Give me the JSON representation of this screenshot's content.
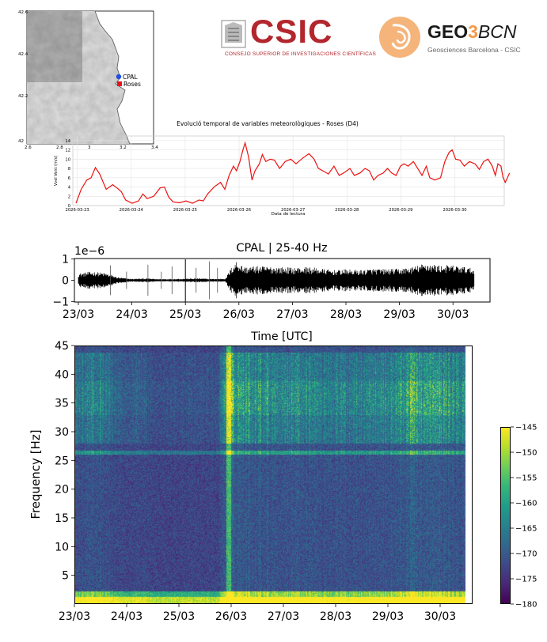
{
  "logos": {
    "csic_word": "CSIC",
    "csic_sub": "Consejo Superior de Investigaciones Científicas",
    "geo_bold": "GEO",
    "geo_three": "3",
    "geo_rest": "BCN",
    "geo_sub": "Geosciences Barcelona - CSIC"
  },
  "map": {
    "stations": [
      {
        "name": "CPAL",
        "marker": "circle",
        "color": "#1f4fe0"
      },
      {
        "name": "Roses",
        "marker": "square",
        "color": "#e8141c"
      }
    ],
    "lat_ticks": [
      "42.6",
      "42.4",
      "42.2",
      "42"
    ],
    "lon_ticks": [
      "2.6",
      "2.8",
      "3",
      "3.2",
      "3.4"
    ]
  },
  "colors": {
    "wind_line": "#ee1111",
    "seismo_trace": "#000000",
    "colormap": "viridis"
  },
  "chart_data": [
    {
      "type": "line",
      "title": "Evolució temporal de variables meteorològiques - Roses (D4)",
      "xlabel": "Data de lectura",
      "ylabel": "Vvel Vent (m/s)",
      "x_ticks": [
        "2026-03-23",
        "2026-03-24",
        "2026-03-25",
        "2026-03-26",
        "2026-03-27",
        "2026-03-28",
        "2026-03-29",
        "2026-03-30"
      ],
      "y_ticks": [
        "0",
        "2",
        "4",
        "6",
        "8",
        "10",
        "12",
        "14"
      ],
      "ylim": [
        0,
        15
      ],
      "grid": true,
      "x_range_days": [
        0,
        7.9
      ],
      "series": [
        {
          "name": "",
          "points": [
            [
              0.0,
              0.5
            ],
            [
              0.12,
              3.5
            ],
            [
              0.25,
              5.5
            ],
            [
              0.35,
              6.0
            ],
            [
              0.45,
              8.2
            ],
            [
              0.55,
              6.8
            ],
            [
              0.7,
              3.5
            ],
            [
              0.85,
              4.5
            ],
            [
              0.95,
              3.8
            ],
            [
              1.05,
              3.0
            ],
            [
              1.15,
              1.2
            ],
            [
              1.3,
              0.5
            ],
            [
              1.45,
              1.0
            ],
            [
              1.55,
              2.5
            ],
            [
              1.65,
              1.5
            ],
            [
              1.8,
              2.0
            ],
            [
              1.95,
              3.8
            ],
            [
              2.05,
              4.0
            ],
            [
              2.15,
              1.8
            ],
            [
              2.25,
              0.8
            ],
            [
              2.4,
              0.6
            ],
            [
              2.55,
              1.0
            ],
            [
              2.7,
              0.5
            ],
            [
              2.85,
              1.2
            ],
            [
              2.95,
              1.0
            ],
            [
              3.05,
              2.5
            ],
            [
              3.2,
              4.0
            ],
            [
              3.35,
              5.0
            ],
            [
              3.45,
              3.5
            ],
            [
              3.55,
              6.5
            ],
            [
              3.65,
              8.5
            ],
            [
              3.72,
              7.5
            ],
            [
              3.8,
              9.5
            ],
            [
              3.87,
              12.0
            ],
            [
              3.92,
              13.5
            ],
            [
              4.0,
              10.5
            ],
            [
              4.08,
              5.5
            ],
            [
              4.15,
              7.5
            ],
            [
              4.25,
              9.0
            ],
            [
              4.32,
              11.0
            ],
            [
              4.4,
              9.5
            ],
            [
              4.5,
              10.0
            ],
            [
              4.6,
              9.8
            ],
            [
              4.72,
              8.0
            ],
            [
              4.85,
              9.5
            ],
            [
              4.98,
              10.0
            ],
            [
              5.1,
              9.0
            ],
            [
              5.25,
              10.2
            ],
            [
              5.4,
              11.2
            ],
            [
              5.52,
              10.0
            ],
            [
              5.62,
              8.0
            ],
            [
              5.72,
              7.5
            ],
            [
              5.85,
              6.8
            ],
            [
              5.98,
              8.5
            ],
            [
              6.1,
              6.5
            ],
            [
              6.2,
              7.0
            ],
            [
              6.35,
              8.0
            ],
            [
              6.45,
              6.5
            ],
            [
              6.58,
              7.0
            ],
            [
              6.7,
              8.0
            ],
            [
              6.8,
              7.5
            ],
            [
              6.9,
              5.5
            ],
            [
              7.0,
              6.5
            ],
            [
              7.12,
              7.0
            ],
            [
              7.22,
              8.0
            ],
            [
              7.32,
              7.0
            ],
            [
              7.42,
              6.5
            ],
            [
              7.52,
              8.5
            ],
            [
              7.6,
              9.0
            ],
            [
              7.7,
              8.5
            ],
            [
              7.82,
              9.5
            ],
            [
              7.92,
              8.0
            ],
            [
              8.02,
              6.5
            ],
            [
              8.12,
              8.5
            ],
            [
              8.2,
              6.0
            ],
            [
              8.32,
              5.5
            ],
            [
              8.45,
              6.0
            ],
            [
              8.55,
              9.5
            ],
            [
              8.65,
              11.5
            ],
            [
              8.72,
              12.0
            ],
            [
              8.8,
              10.0
            ],
            [
              8.9,
              9.8
            ],
            [
              9.0,
              8.5
            ],
            [
              9.12,
              9.5
            ],
            [
              9.25,
              9.0
            ],
            [
              9.35,
              7.8
            ],
            [
              9.45,
              9.5
            ],
            [
              9.55,
              10.0
            ],
            [
              9.65,
              8.5
            ],
            [
              9.72,
              6.5
            ],
            [
              9.78,
              9.0
            ],
            [
              9.85,
              8.5
            ],
            [
              9.9,
              6.0
            ],
            [
              9.95,
              5.0
            ],
            [
              10.0,
              6.0
            ],
            [
              10.05,
              7.0
            ]
          ]
        }
      ]
    },
    {
      "type": "line",
      "title": "CPAL | 25-40 Hz",
      "xlabel": "Time [UTC]",
      "ylabel": "",
      "scale_label": "1e−6",
      "x_ticks": [
        "23/03",
        "24/03",
        "25/03",
        "26/03",
        "27/03",
        "28/03",
        "29/03",
        "30/03"
      ],
      "y_ticks": [
        "−1",
        "0",
        "1"
      ],
      "ylim": [
        -1,
        1
      ],
      "x_range_days": [
        0,
        7.5
      ],
      "envelope_days": [
        0.0,
        0.25,
        0.5,
        0.75,
        1.0,
        1.25,
        1.5,
        1.75,
        2.0,
        2.25,
        2.5,
        2.75,
        2.85,
        2.95,
        3.0,
        3.1,
        3.25,
        3.5,
        3.75,
        4.0,
        4.25,
        4.5,
        4.75,
        5.0,
        5.25,
        5.5,
        5.75,
        6.0,
        6.25,
        6.5,
        6.75,
        7.0,
        7.25,
        7.4
      ],
      "envelope_amp": [
        0.28,
        0.36,
        0.3,
        0.12,
        0.06,
        0.08,
        0.05,
        0.06,
        0.07,
        0.08,
        0.06,
        0.07,
        0.5,
        0.8,
        0.72,
        0.55,
        0.58,
        0.58,
        0.55,
        0.52,
        0.55,
        0.5,
        0.42,
        0.45,
        0.42,
        0.48,
        0.46,
        0.48,
        0.55,
        0.72,
        0.62,
        0.62,
        0.55,
        0.45
      ]
    },
    {
      "type": "heatmap",
      "title": "",
      "xlabel": "",
      "ylabel": "Frequency [Hz]",
      "x_ticks": [
        "23/03",
        "24/03",
        "25/03",
        "26/03",
        "27/03",
        "28/03",
        "29/03",
        "30/03"
      ],
      "y_ticks": [
        "5",
        "10",
        "15",
        "20",
        "25",
        "30",
        "35",
        "40",
        "45"
      ],
      "ylim": [
        0,
        45
      ],
      "x_range_days": [
        0,
        7.5
      ],
      "colorbar_ticks": [
        "−145",
        "−150",
        "−155",
        "−160",
        "−165",
        "−170",
        "−175",
        "−180"
      ],
      "colorbar_range": [
        -180,
        -145
      ],
      "activity_days": [
        0.0,
        0.5,
        0.75,
        1.0,
        1.25,
        1.5,
        1.75,
        2.0,
        2.25,
        2.5,
        2.75,
        2.85,
        2.95,
        3.05,
        3.25,
        3.5,
        3.75,
        4.0,
        4.25,
        4.5,
        4.75,
        5.0,
        5.25,
        5.5,
        5.75,
        6.0,
        6.25,
        6.5,
        6.75,
        7.0,
        7.25,
        7.5
      ],
      "activity_level": [
        0.4,
        0.45,
        0.25,
        0.15,
        0.2,
        0.12,
        0.1,
        0.12,
        0.12,
        0.12,
        0.12,
        0.55,
        0.9,
        0.75,
        0.6,
        0.6,
        0.55,
        0.5,
        0.55,
        0.5,
        0.42,
        0.45,
        0.42,
        0.5,
        0.48,
        0.48,
        0.55,
        0.8,
        0.6,
        0.65,
        0.55,
        0.45
      ],
      "persistent_lines_hz": [
        26.5,
        1.0
      ]
    }
  ]
}
